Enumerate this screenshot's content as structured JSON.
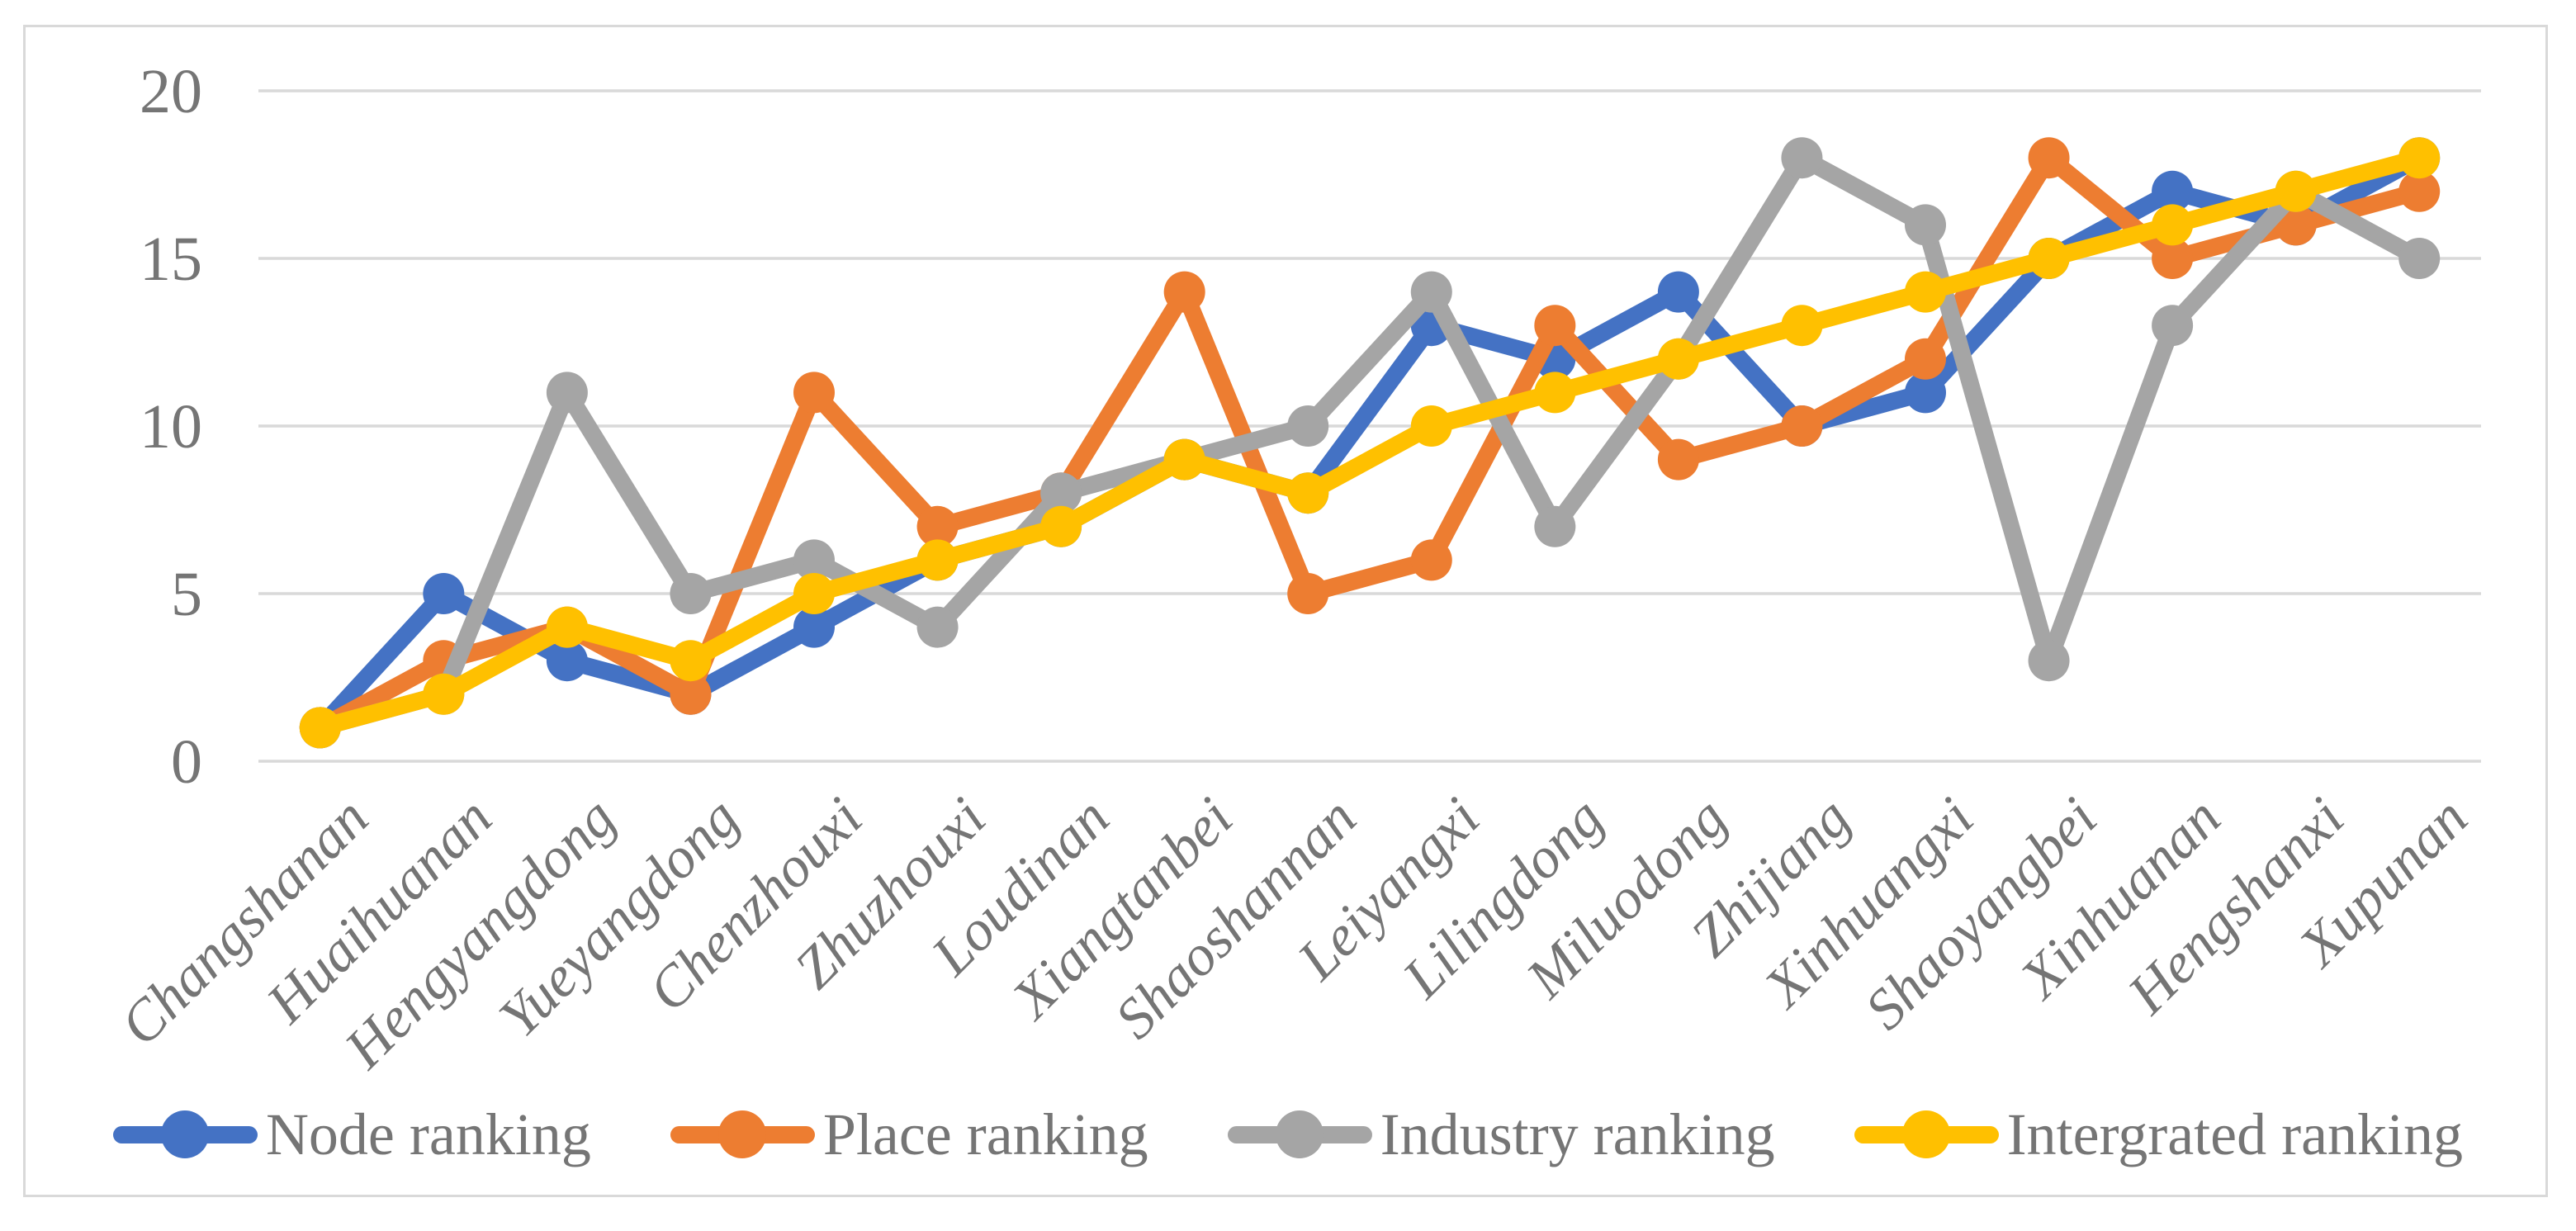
{
  "chart_data": {
    "type": "line",
    "categories": [
      "Changshanan",
      "Huaihuanan",
      "Hengyangdong",
      "Yueyangdong",
      "Chenzhouxi",
      "Zhuzhouxi",
      "Loudinan",
      "Xiangtanbei",
      "Shaoshannan",
      "Leiyangxi",
      "Lilingdong",
      "Miluodong",
      "Zhijiang",
      "Xinhuangxi",
      "Shaoyangbei",
      "Xinhuanan",
      "Hengshanxi",
      "Xupunan"
    ],
    "series": [
      {
        "name": "Node ranking",
        "color": "#4472C4",
        "values": [
          1,
          5,
          3,
          2,
          4,
          6,
          7,
          9,
          8,
          13,
          12,
          14,
          10,
          11,
          15,
          17,
          16,
          18
        ]
      },
      {
        "name": "Place ranking",
        "color": "#ED7D31",
        "values": [
          1,
          3,
          4,
          2,
          11,
          7,
          8,
          14,
          5,
          6,
          13,
          9,
          10,
          12,
          18,
          15,
          16,
          17
        ]
      },
      {
        "name": "Industry ranking",
        "color": "#A5A5A5",
        "values": [
          1,
          2,
          11,
          5,
          6,
          4,
          8,
          9,
          10,
          14,
          7,
          12,
          18,
          16,
          3,
          13,
          17,
          15
        ]
      },
      {
        "name": "Intergrated ranking",
        "color": "#FFC000",
        "values": [
          1,
          2,
          4,
          3,
          5,
          6,
          7,
          9,
          8,
          10,
          11,
          12,
          13,
          14,
          15,
          16,
          17,
          18
        ]
      }
    ],
    "yaxis": {
      "min": 0,
      "max": 20,
      "step": 5,
      "tick_labels": [
        "0",
        "5",
        "10",
        "15",
        "20"
      ]
    },
    "xlabel": "",
    "ylabel": "",
    "grid": true,
    "legend_position": "bottom",
    "styles": {
      "gridline_color": "#D9D9D9",
      "border_color": "#D9D9D9",
      "axis_text_color": "#757575",
      "background": "#FFFFFF"
    }
  }
}
